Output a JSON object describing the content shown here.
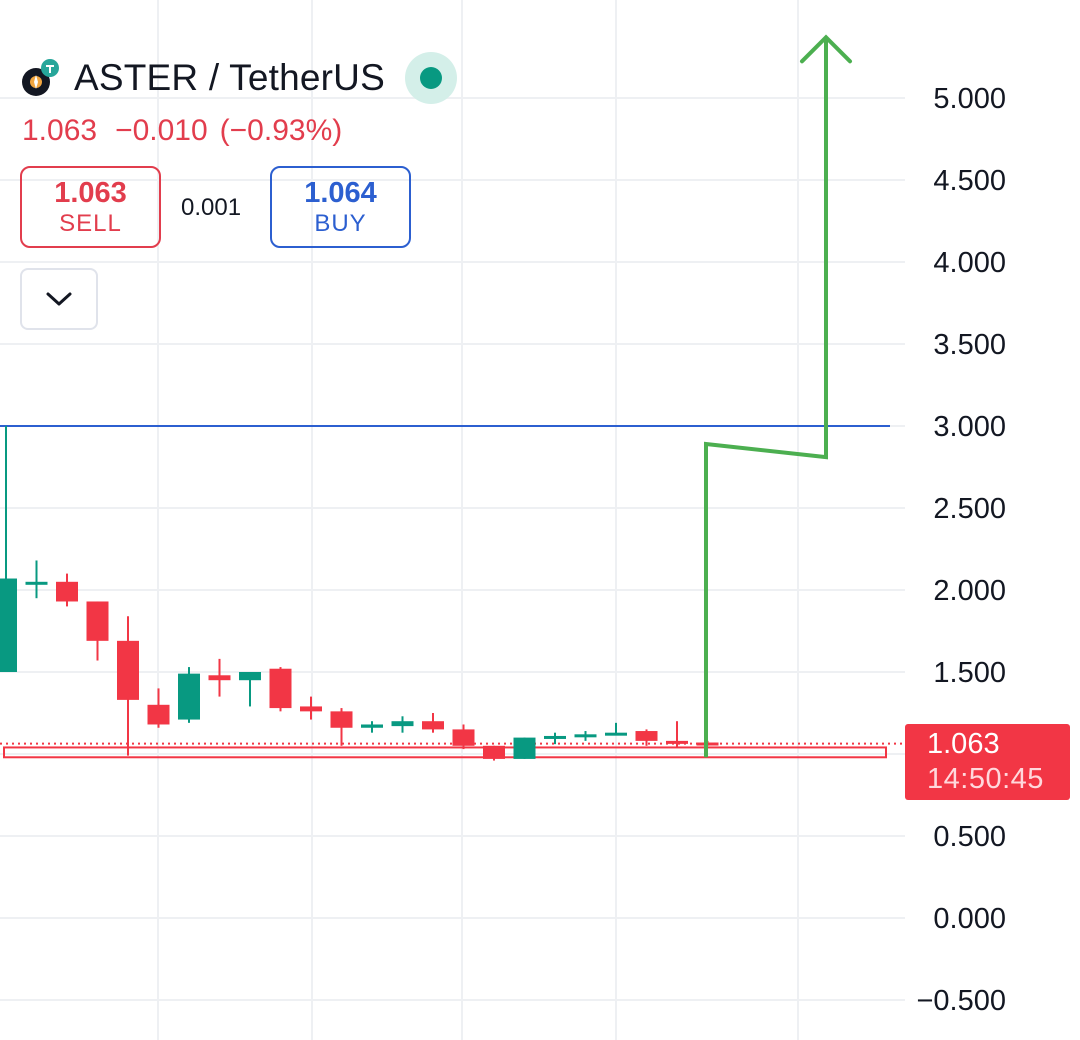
{
  "header": {
    "symbol": "ASTER / TetherUS",
    "last_price": "1.063",
    "change": "−0.010",
    "change_pct": "(−0.93%)",
    "sell_price": "1.063",
    "sell_label": "SELL",
    "spread": "0.001",
    "buy_price": "1.064",
    "buy_label": "BUY",
    "live_icon": "green-dot-icon",
    "collapse_icon": "chevron-down-icon"
  },
  "price_label": {
    "price": "1.063",
    "countdown": "14:50:45"
  },
  "colors": {
    "up": "#089981",
    "down": "#f23645",
    "hline": "#2c5fd0",
    "arrow": "#4caf50",
    "sell": "#e23d4d",
    "buy": "#2c5fd0",
    "grid": "#eef0f3"
  },
  "chart_data": {
    "type": "candlestick",
    "ylim": [
      -0.7,
      5.5
    ],
    "yticks": [
      "5.000",
      "4.500",
      "4.000",
      "3.500",
      "3.000",
      "2.500",
      "2.000",
      "1.500",
      "1.000",
      "0.500",
      "0.000",
      "−0.500"
    ],
    "ytick_values": [
      5.0,
      4.5,
      4.0,
      3.5,
      3.0,
      2.5,
      2.0,
      1.5,
      1.0,
      0.5,
      0.0,
      -0.5
    ],
    "candles": [
      {
        "o": 1.5,
        "h": 3.0,
        "l": 1.5,
        "c": 2.07
      },
      {
        "o": 2.05,
        "h": 2.18,
        "l": 1.95,
        "c": 2.05
      },
      {
        "o": 2.05,
        "h": 2.1,
        "l": 1.9,
        "c": 1.93
      },
      {
        "o": 1.93,
        "h": 1.93,
        "l": 1.57,
        "c": 1.69
      },
      {
        "o": 1.69,
        "h": 1.84,
        "l": 0.99,
        "c": 1.33
      },
      {
        "o": 1.3,
        "h": 1.4,
        "l": 1.16,
        "c": 1.18
      },
      {
        "o": 1.21,
        "h": 1.53,
        "l": 1.19,
        "c": 1.49
      },
      {
        "o": 1.48,
        "h": 1.58,
        "l": 1.35,
        "c": 1.45
      },
      {
        "o": 1.45,
        "h": 1.5,
        "l": 1.29,
        "c": 1.5
      },
      {
        "o": 1.52,
        "h": 1.53,
        "l": 1.26,
        "c": 1.28
      },
      {
        "o": 1.29,
        "h": 1.35,
        "l": 1.21,
        "c": 1.26
      },
      {
        "o": 1.26,
        "h": 1.28,
        "l": 1.05,
        "c": 1.16
      },
      {
        "o": 1.16,
        "h": 1.2,
        "l": 1.13,
        "c": 1.18
      },
      {
        "o": 1.17,
        "h": 1.23,
        "l": 1.13,
        "c": 1.2
      },
      {
        "o": 1.2,
        "h": 1.25,
        "l": 1.13,
        "c": 1.15
      },
      {
        "o": 1.15,
        "h": 1.18,
        "l": 1.03,
        "c": 1.05
      },
      {
        "o": 1.05,
        "h": 1.05,
        "l": 0.96,
        "c": 0.97
      },
      {
        "o": 0.97,
        "h": 1.1,
        "l": 0.97,
        "c": 1.1
      },
      {
        "o": 1.1,
        "h": 1.13,
        "l": 1.06,
        "c": 1.11
      },
      {
        "o": 1.11,
        "h": 1.14,
        "l": 1.08,
        "c": 1.12
      },
      {
        "o": 1.12,
        "h": 1.19,
        "l": 1.12,
        "c": 1.13
      },
      {
        "o": 1.14,
        "h": 1.15,
        "l": 1.05,
        "c": 1.08
      },
      {
        "o": 1.08,
        "h": 1.2,
        "l": 1.04,
        "c": 1.07
      },
      {
        "o": 1.07,
        "h": 1.08,
        "l": 1.05,
        "c": 1.06
      }
    ],
    "horizontal_line": 3.0,
    "current_price_line": 1.063,
    "zone": [
      0.98,
      1.04
    ],
    "arrow_path": [
      {
        "candle": 23,
        "y": 0.98
      },
      {
        "candle": 23,
        "y": 2.89
      },
      {
        "candle": 27,
        "y": 2.81
      },
      {
        "candle": 27,
        "y": 5.37
      }
    ]
  }
}
